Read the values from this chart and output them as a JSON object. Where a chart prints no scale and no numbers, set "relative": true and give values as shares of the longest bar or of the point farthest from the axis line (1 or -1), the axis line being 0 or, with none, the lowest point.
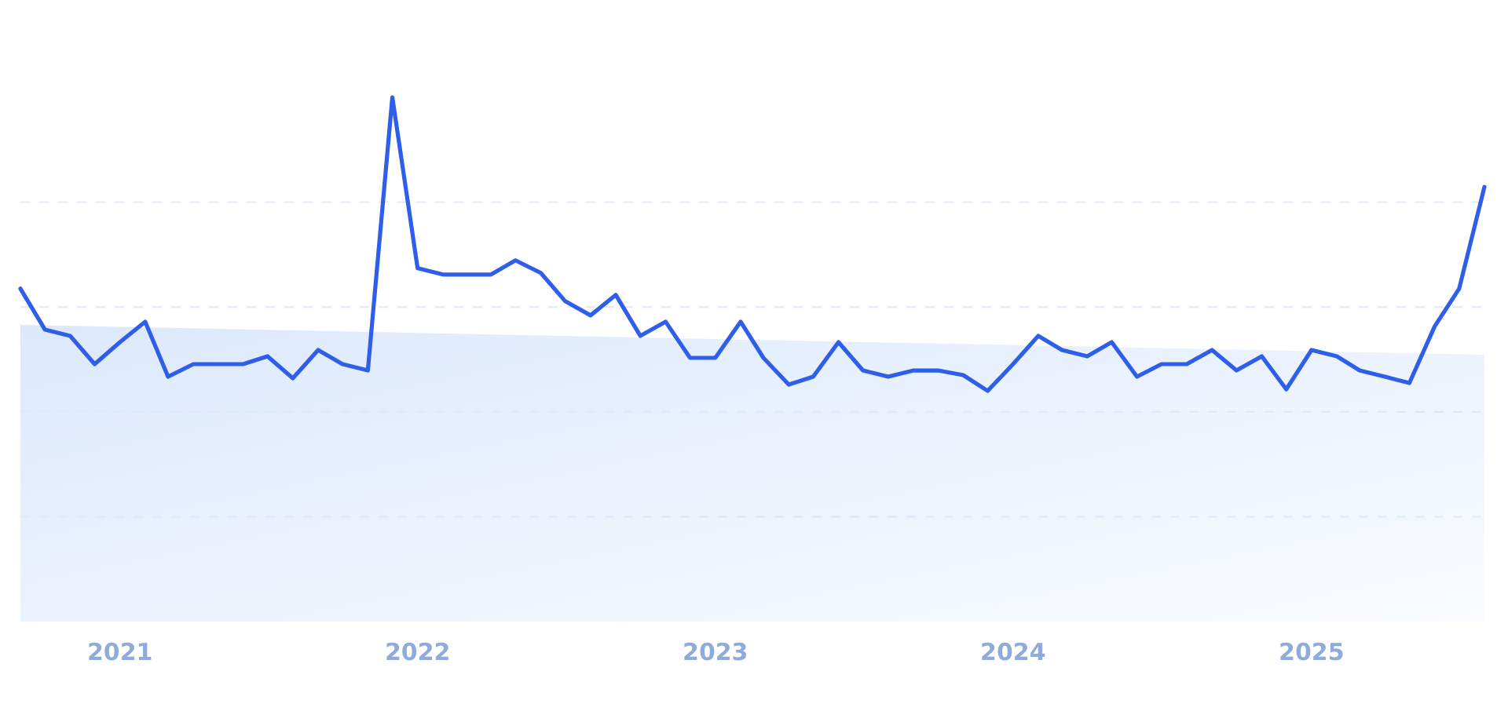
{
  "chart_data": {
    "type": "line",
    "relative": true,
    "grid": "y",
    "x": [
      "2020-09",
      "2020-10",
      "2020-11",
      "2020-12",
      "2021-01",
      "2021-02",
      "2021-03",
      "2021-04",
      "2021-05",
      "2021-06",
      "2021-07",
      "2021-08",
      "2021-09",
      "2021-10",
      "2021-11",
      "2021-12",
      "2022-01",
      "2022-02",
      "2022-03",
      "2022-04",
      "2022-05",
      "2022-06",
      "2022-07",
      "2022-08",
      "2022-09",
      "2022-10",
      "2022-11",
      "2022-12",
      "2023-01",
      "2023-02",
      "2023-03",
      "2023-04",
      "2023-05",
      "2023-06",
      "2023-07",
      "2023-08",
      "2023-09",
      "2023-10",
      "2023-11",
      "2023-12",
      "2024-01",
      "2024-02",
      "2024-03",
      "2024-04",
      "2024-05",
      "2024-06",
      "2024-07",
      "2024-08",
      "2024-09",
      "2024-10",
      "2024-11",
      "2024-12",
      "2025-01",
      "2025-02",
      "2025-03",
      "2025-04",
      "2025-05",
      "2025-06",
      "2025-07",
      "2025-08"
    ],
    "xlim": [
      "2020-09",
      "2025-08"
    ],
    "xticks": [
      "2021",
      "2022",
      "2023",
      "2024",
      "2025"
    ],
    "series": [
      {
        "type": "area",
        "color": "#dce9fc",
        "x": [
          "2020-09",
          "2025-08"
        ],
        "values": [
          0.566,
          0.509
        ]
      },
      {
        "color": "#2f5ee8",
        "values": [
          0.635,
          0.557,
          0.545,
          0.491,
          0.533,
          0.572,
          0.467,
          0.491,
          0.491,
          0.491,
          0.506,
          0.464,
          0.518,
          0.491,
          0.479,
          1,
          0.674,
          0.662,
          0.662,
          0.662,
          0.689,
          0.665,
          0.611,
          0.584,
          0.623,
          0.545,
          0.572,
          0.503,
          0.503,
          0.572,
          0.503,
          0.452,
          0.467,
          0.533,
          0.479,
          0.467,
          0.479,
          0.479,
          0.47,
          0.44,
          0.491,
          0.545,
          0.518,
          0.506,
          0.533,
          0.467,
          0.491,
          0.491,
          0.518,
          0.479,
          0.506,
          0.443,
          0.518,
          0.506,
          0.479,
          0.467,
          0.455,
          0.563,
          0.635,
          0.829
        ]
      }
    ]
  }
}
